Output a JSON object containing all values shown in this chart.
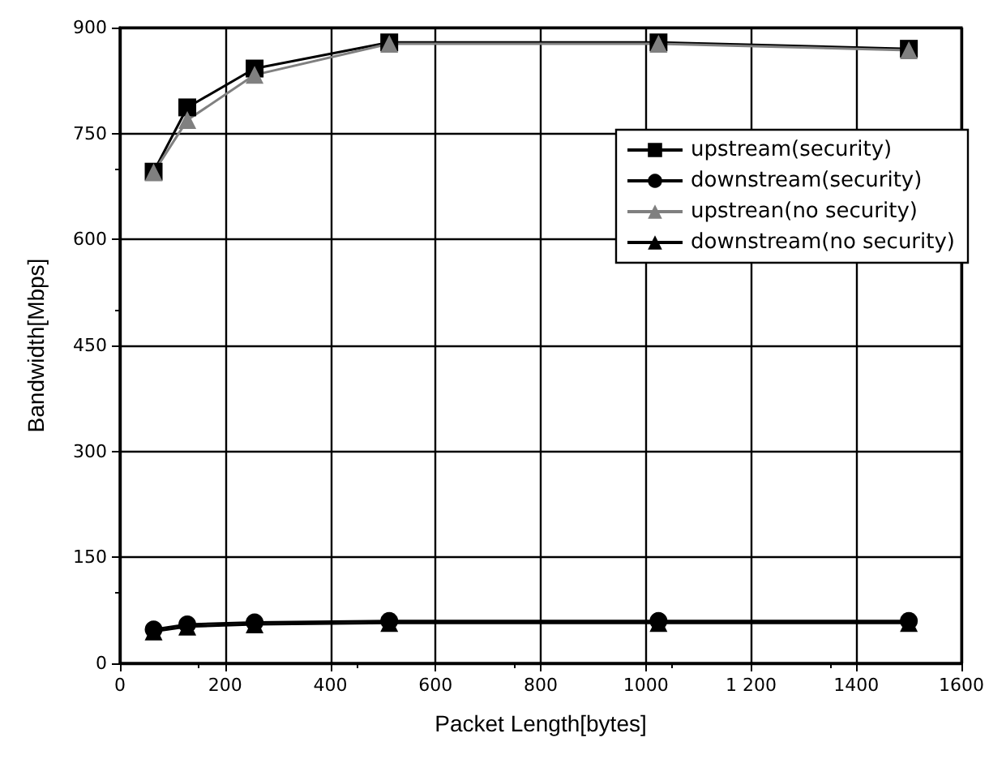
{
  "chart_data": {
    "type": "line",
    "xlabel": "Packet Length[bytes]",
    "ylabel": "Bandwidth[Mbps]",
    "xlim": [
      0,
      1600
    ],
    "xticks": [
      0,
      200,
      400,
      600,
      800,
      1000,
      {
        "value": 1200,
        "label": "1 200"
      },
      1400,
      1600
    ],
    "ylim": [
      0,
      900
    ],
    "yticks": [
      0,
      150,
      300,
      450,
      600,
      750,
      900
    ],
    "grid": true,
    "legend": "top right",
    "line_style": "solid",
    "x": [
      64,
      128,
      256,
      512,
      1024,
      1500
    ],
    "series": [
      {
        "name": "upstream(security)",
        "color": "#000000",
        "marker": "square",
        "values": [
          696,
          787,
          842,
          879,
          879,
          870
        ]
      },
      {
        "name": "downstream(security)",
        "color": "#000000",
        "marker": "circle",
        "values": [
          48,
          55,
          58,
          60,
          60,
          60
        ]
      },
      {
        "name": "upstrean(no security)",
        "color": "#808080",
        "marker": "triangle",
        "values": [
          695,
          769,
          833,
          877,
          877,
          868
        ]
      },
      {
        "name": "downstream(no security)",
        "color": "#000000",
        "marker": "triangle",
        "values": [
          45,
          52,
          55,
          57,
          57,
          57
        ]
      }
    ]
  }
}
